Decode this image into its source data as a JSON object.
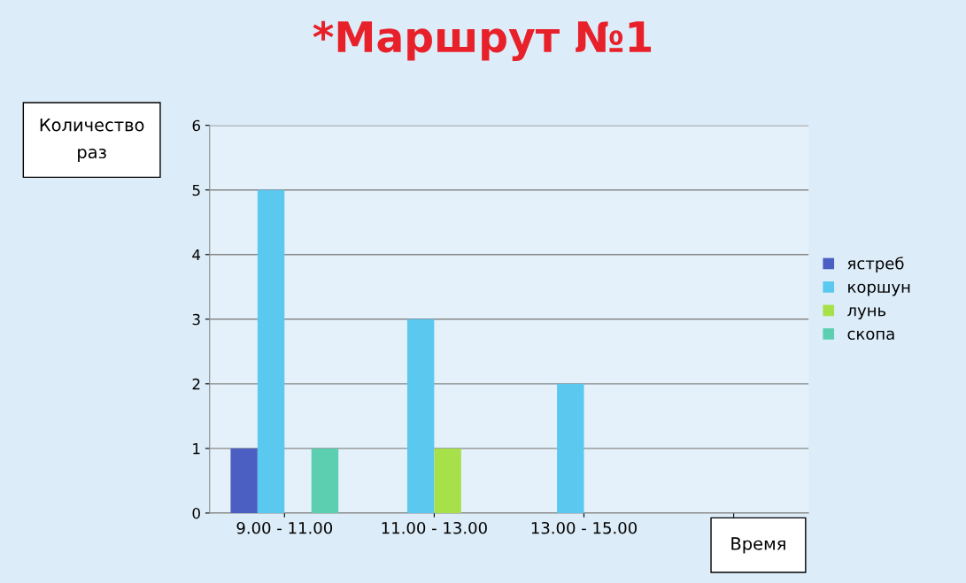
{
  "chart_data": {
    "type": "bar",
    "title": "*Маршрут №1",
    "xlabel": "Время",
    "ylabel": "Количество раз",
    "categories": [
      "9.00 - 11.00",
      "11.00 - 13.00",
      "13.00 - 15.00",
      null
    ],
    "series": [
      {
        "name": "ястреб",
        "color": "#4a5fc1",
        "values": [
          1,
          0,
          0,
          0
        ]
      },
      {
        "name": "коршун",
        "color": "#5bc8f0",
        "values": [
          5,
          3,
          2,
          0
        ]
      },
      {
        "name": "лунь",
        "color": "#a6e14a",
        "values": [
          0,
          1,
          0,
          0
        ]
      },
      {
        "name": "скопа",
        "color": "#5ccfb0",
        "values": [
          1,
          0,
          0,
          0
        ]
      }
    ],
    "ylim": [
      0,
      6
    ],
    "yticks": [
      0,
      1,
      2,
      3,
      4,
      5,
      6
    ],
    "grid": "y",
    "legend": "right"
  }
}
